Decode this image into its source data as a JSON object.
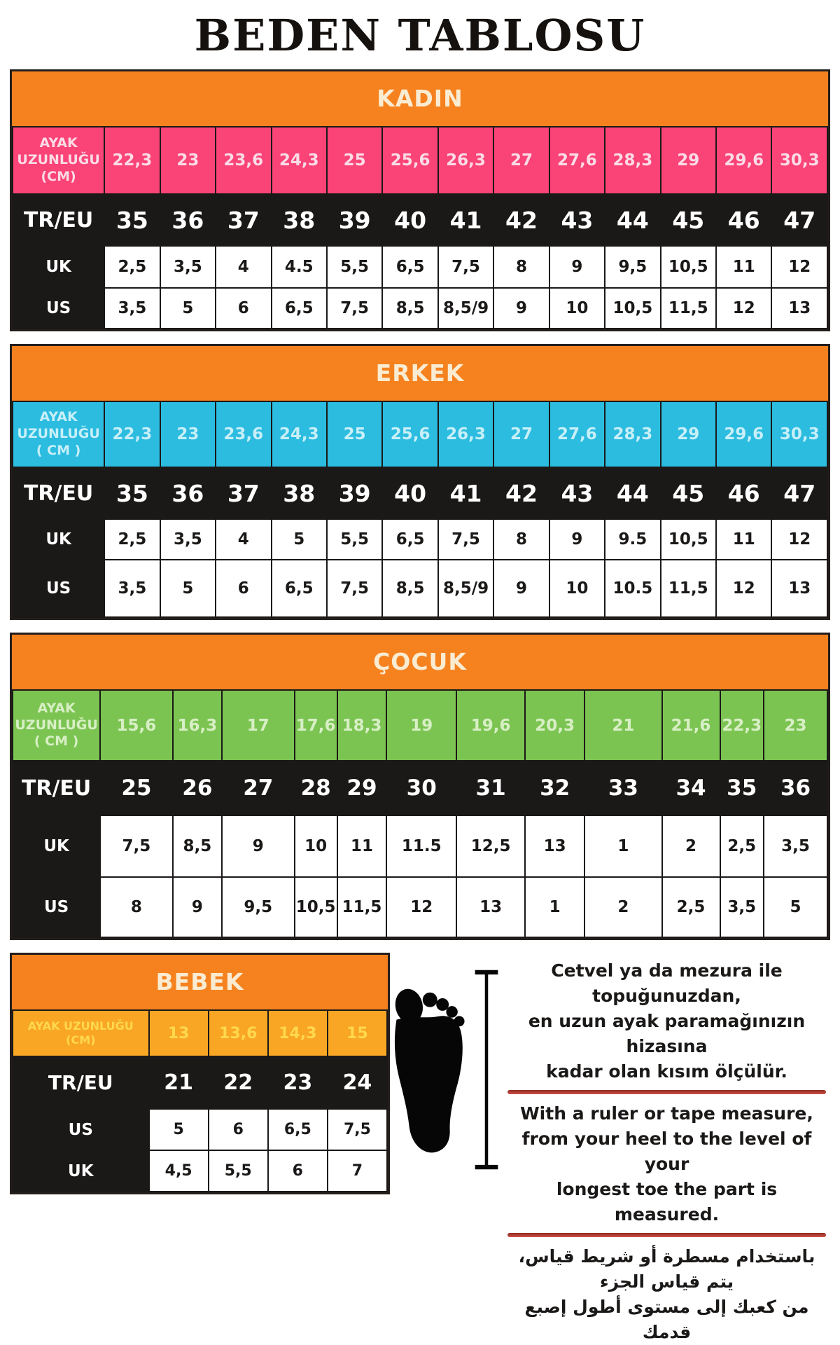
{
  "title": "BEDEN TABLOSU",
  "colors": {
    "header_orange": "#F5821F",
    "header_text_cream": "#FAECD2",
    "kadin_pink": "#FA4377",
    "erkek_cyan": "#2BBCE0",
    "cocuk_green": "#7CC452",
    "bebek_amber": "#F9A625",
    "bebek_amber_text": "#FFD84D",
    "dark_row": "#1B1918",
    "divider_red": "#B03A30"
  },
  "tables": {
    "kadin": {
      "title": "KADIN",
      "cm_label_lines": [
        "AYAK",
        "UZUNLUĞU",
        "(CM)"
      ],
      "cm_values": [
        "22,3",
        "23",
        "23,6",
        "24,3",
        "25",
        "25,6",
        "26,3",
        "27",
        "27,6",
        "28,3",
        "29",
        "29,6",
        "30,3"
      ],
      "rows": [
        {
          "label": "TR/EU",
          "values": [
            "35",
            "36",
            "37",
            "38",
            "39",
            "40",
            "41",
            "42",
            "43",
            "44",
            "45",
            "46",
            "47"
          ]
        },
        {
          "label": "UK",
          "values": [
            "2,5",
            "3,5",
            "4",
            "4.5",
            "5,5",
            "6,5",
            "7,5",
            "8",
            "9",
            "9,5",
            "10,5",
            "11",
            "12"
          ]
        },
        {
          "label": "US",
          "values": [
            "3,5",
            "5",
            "6",
            "6,5",
            "7,5",
            "8,5",
            "8,5/9",
            "9",
            "10",
            "10,5",
            "11,5",
            "12",
            "13"
          ]
        }
      ]
    },
    "erkek": {
      "title": "ERKEK",
      "cm_label_lines": [
        "AYAK",
        "UZUNLUĞU",
        "( CM )"
      ],
      "cm_values": [
        "22,3",
        "23",
        "23,6",
        "24,3",
        "25",
        "25,6",
        "26,3",
        "27",
        "27,6",
        "28,3",
        "29",
        "29,6",
        "30,3"
      ],
      "rows": [
        {
          "label": "TR/EU",
          "values": [
            "35",
            "36",
            "37",
            "38",
            "39",
            "40",
            "41",
            "42",
            "43",
            "44",
            "45",
            "46",
            "47"
          ]
        },
        {
          "label": "UK",
          "values": [
            "2,5",
            "3,5",
            "4",
            "5",
            "5,5",
            "6,5",
            "7,5",
            "8",
            "9",
            "9.5",
            "10,5",
            "11",
            "12"
          ]
        },
        {
          "label": "US",
          "values": [
            "3,5",
            "5",
            "6",
            "6,5",
            "7,5",
            "8,5",
            "8,5/9",
            "9",
            "10",
            "10.5",
            "11,5",
            "12",
            "13"
          ]
        }
      ]
    },
    "cocuk": {
      "title": "ÇOCUK",
      "cm_label_lines": [
        "AYAK",
        "UZUNLUĞU",
        "( CM )"
      ],
      "cm_values": [
        "15,6",
        "16,3",
        "17",
        "17,6",
        "18,3",
        "19",
        "19,6",
        "20,3",
        "21",
        "21,6",
        "22,3",
        "23"
      ],
      "rows": [
        {
          "label": "TR/EU",
          "values": [
            "25",
            "26",
            "27",
            "28",
            "29",
            "30",
            "31",
            "32",
            "33",
            "34",
            "35",
            "36"
          ]
        },
        {
          "label": "UK",
          "values": [
            "7,5",
            "8,5",
            "9",
            "10",
            "11",
            "11.5",
            "12,5",
            "13",
            "1",
            "2",
            "2,5",
            "3,5"
          ]
        },
        {
          "label": "US",
          "values": [
            "8",
            "9",
            "9,5",
            "10,5",
            "11,5",
            "12",
            "13",
            "1",
            "2",
            "2,5",
            "3,5",
            "5"
          ]
        }
      ]
    },
    "bebek": {
      "title": "BEBEK",
      "cm_label_lines": [
        "AYAK UZUNLUĞU",
        "(CM)"
      ],
      "cm_values": [
        "13",
        "13,6",
        "14,3",
        "15"
      ],
      "rows": [
        {
          "label": "TR/EU",
          "values": [
            "21",
            "22",
            "23",
            "24"
          ]
        },
        {
          "label": "US",
          "values": [
            "5",
            "6",
            "6,5",
            "7,5"
          ]
        },
        {
          "label": "UK",
          "values": [
            "4,5",
            "5,5",
            "6",
            "7"
          ]
        }
      ]
    }
  },
  "instructions": {
    "tr_lines": [
      "Cetvel ya da mezura ile topuğunuzdan,",
      "en uzun ayak paramağınızın hizasına",
      "kadar olan kısım ölçülür."
    ],
    "en_lines": [
      "With a ruler or tape measure,",
      "from your heel to the level of your",
      "longest toe the part is measured."
    ],
    "ar_lines": [
      "باستخدام مسطرة أو شريط قياس، يتم قياس الجزء",
      "من كعبك إلى مستوى أطول إصبع قدمك"
    ]
  }
}
